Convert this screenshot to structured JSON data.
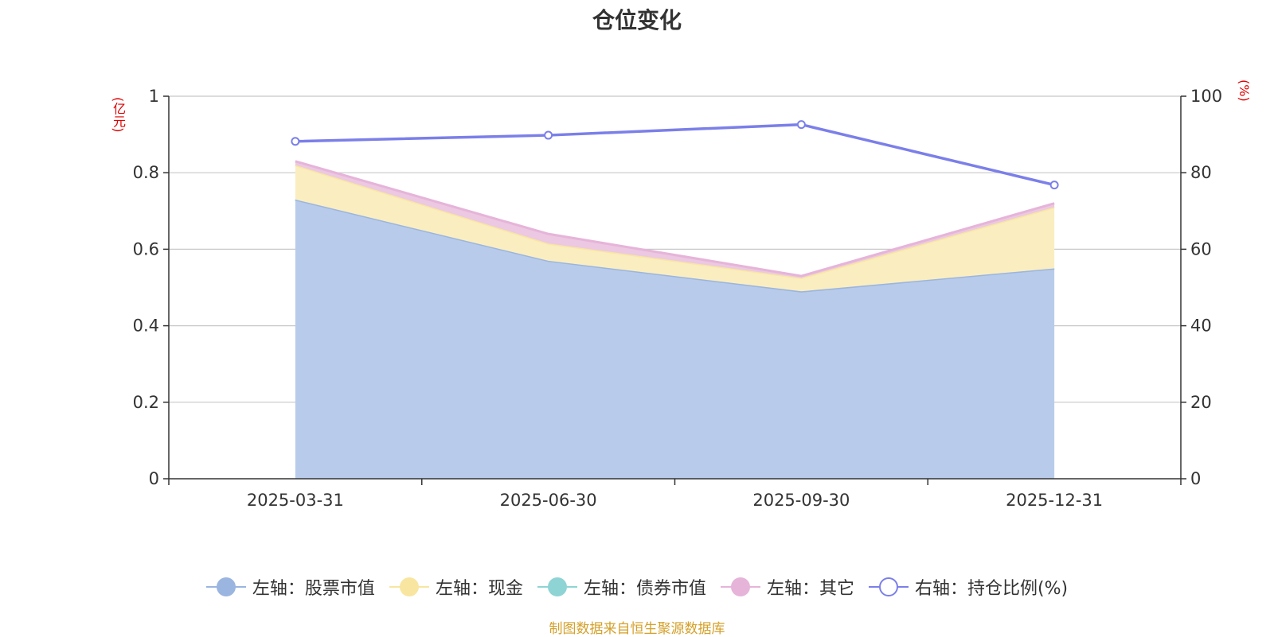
{
  "chart_data": {
    "type": "area",
    "title": "仓位变化",
    "categories": [
      "2025-03-31",
      "2025-06-30",
      "2025-09-30",
      "2025-12-31"
    ],
    "left_axis": {
      "unit_label": "(亿元)",
      "ylim": [
        0,
        1
      ],
      "ticks": [
        "0",
        "0.2",
        "0.4",
        "0.6",
        "0.8",
        "1"
      ]
    },
    "right_axis": {
      "unit_label": "(%)",
      "ylim": [
        0,
        100
      ],
      "ticks": [
        "0",
        "20",
        "40",
        "60",
        "80",
        "100"
      ]
    },
    "series": [
      {
        "name": "左轴：股票市值",
        "axis": "left",
        "stacked": true,
        "values": [
          0.73,
          0.57,
          0.49,
          0.55
        ],
        "color": "#9ab5e0",
        "fill": "#b8cbea"
      },
      {
        "name": "左轴：现金",
        "axis": "left",
        "stacked": true,
        "values": [
          0.09,
          0.045,
          0.035,
          0.16
        ],
        "color": "#f8e6a0",
        "fill": "#faedbf"
      },
      {
        "name": "左轴：债券市值",
        "axis": "left",
        "stacked": true,
        "values": [
          0,
          0,
          0,
          0
        ],
        "color": "#8fd4d4",
        "fill": "#bfe5e5"
      },
      {
        "name": "左轴：其它",
        "axis": "left",
        "stacked": true,
        "values": [
          0.01,
          0.025,
          0.005,
          0.01
        ],
        "color": "#e6b4d9",
        "fill": "#ecc8e2"
      },
      {
        "name": "右轴：持仓比例(%)",
        "axis": "right",
        "stacked": false,
        "values": [
          88.2,
          89.8,
          92.6,
          76.8
        ],
        "color": "#7b7fe9"
      }
    ],
    "grid": true,
    "legend_position": "bottom"
  },
  "source_note": "制图数据来自恒生聚源数据库"
}
